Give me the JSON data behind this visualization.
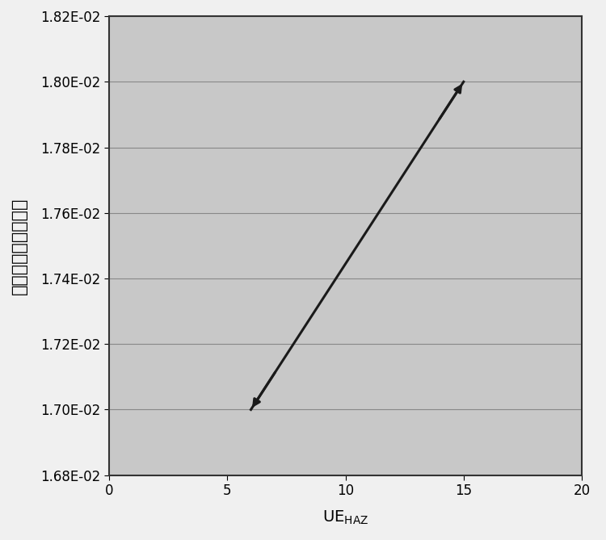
{
  "x_data": [
    6.0,
    15.0
  ],
  "y_data": [
    0.017,
    0.018
  ],
  "xlim": [
    0,
    20
  ],
  "ylim": [
    0.0168,
    0.0182
  ],
  "xticks": [
    0,
    5,
    10,
    15,
    20
  ],
  "yticks": [
    0.0168,
    0.017,
    0.0172,
    0.0174,
    0.0176,
    0.0178,
    0.018,
    0.0182
  ],
  "ylabel": "焊趾部局部塑性应变",
  "line_color": "#1a1a1a",
  "line_width": 2.2,
  "bg_color": "#c8c8c8",
  "grid_color": "#888888",
  "arrow_color": "#1a1a1a",
  "fig_bg_color": "#f0f0f0",
  "tick_fontsize": 12,
  "ylabel_fontsize": 16,
  "xlabel_fontsize": 14
}
